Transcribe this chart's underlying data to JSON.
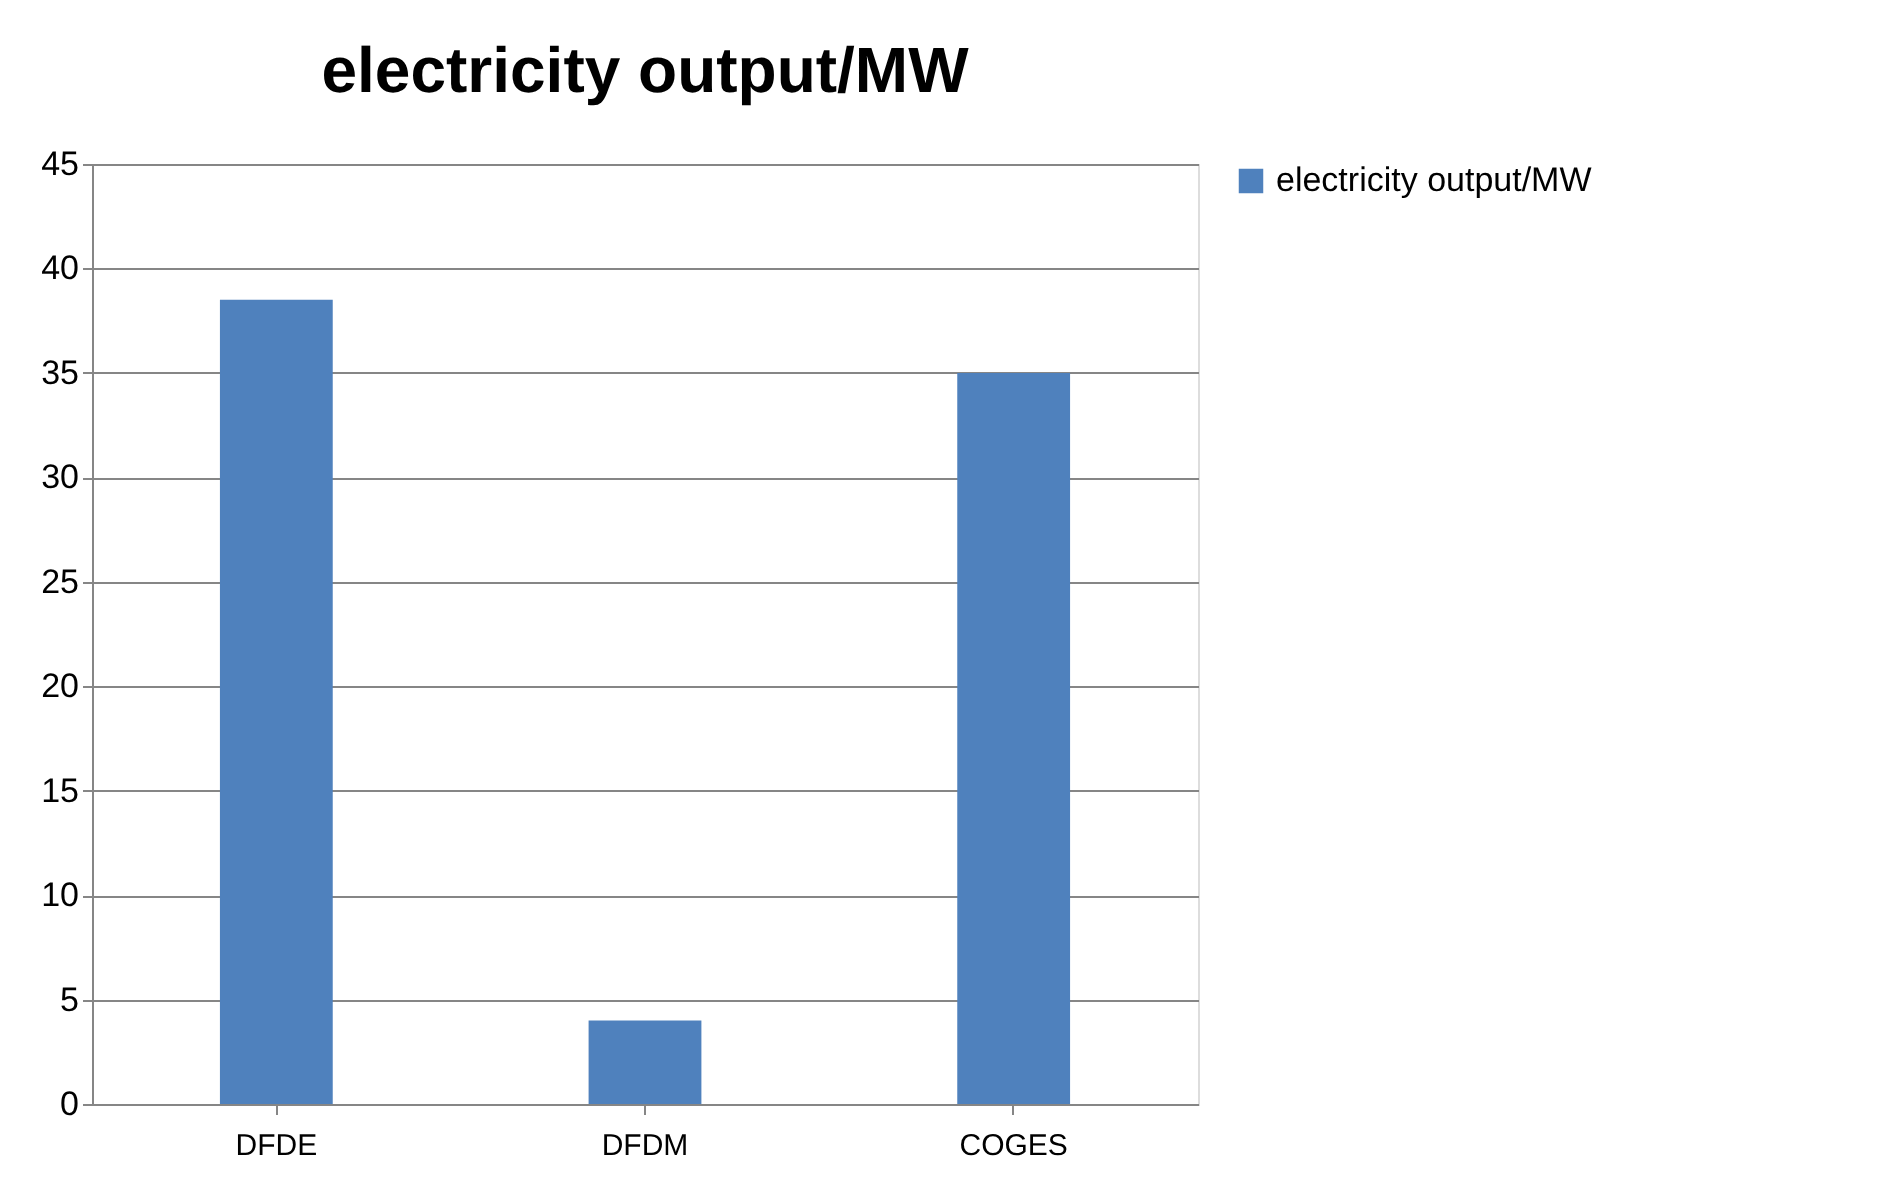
{
  "chart_data": {
    "type": "bar",
    "title": "electricity output/MW",
    "categories": [
      "DFDE",
      "DFDM",
      "COGES"
    ],
    "series": [
      {
        "name": "electricity output/MW",
        "color": "#4f81bd",
        "values": [
          38.5,
          4,
          35
        ]
      }
    ],
    "ylim": [
      0,
      45
    ],
    "yticks": [
      0,
      5,
      10,
      15,
      20,
      25,
      30,
      35,
      40,
      45
    ],
    "grid": "y",
    "legend": "right"
  }
}
